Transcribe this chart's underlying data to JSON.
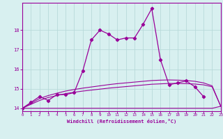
{
  "x": [
    0,
    1,
    2,
    3,
    4,
    5,
    6,
    7,
    8,
    9,
    10,
    11,
    12,
    13,
    14,
    15,
    16,
    17,
    18,
    19,
    20,
    21,
    22,
    23
  ],
  "line_main": [
    14.0,
    14.3,
    14.6,
    14.4,
    14.7,
    14.7,
    14.8,
    15.9,
    17.5,
    18.0,
    17.8,
    17.5,
    17.6,
    17.6,
    18.3,
    19.1,
    16.5,
    15.2,
    15.3,
    15.4,
    15.1,
    14.6,
    null,
    null
  ],
  "line_flat": [
    14.0,
    14.0,
    14.0,
    14.0,
    14.0,
    14.0,
    14.0,
    14.0,
    14.0,
    14.0,
    14.0,
    14.0,
    14.0,
    14.0,
    14.0,
    14.0,
    14.0,
    14.0,
    14.0,
    14.0,
    14.0,
    14.0,
    14.0,
    14.1
  ],
  "line_trend1": [
    14.0,
    14.2,
    14.4,
    14.55,
    14.65,
    14.75,
    14.82,
    14.88,
    14.93,
    14.98,
    15.03,
    15.07,
    15.11,
    15.15,
    15.19,
    15.23,
    15.25,
    15.27,
    15.27,
    15.26,
    15.24,
    15.2,
    15.1,
    14.1
  ],
  "line_trend2": [
    14.0,
    14.25,
    14.5,
    14.65,
    14.77,
    14.88,
    14.96,
    15.03,
    15.09,
    15.15,
    15.21,
    15.26,
    15.3,
    15.34,
    15.38,
    15.42,
    15.44,
    15.45,
    15.44,
    15.42,
    15.38,
    15.3,
    15.15,
    14.1
  ],
  "background_color": "#d8f0f0",
  "grid_color": "#b8dada",
  "line_color": "#990099",
  "xlabel": "Windchill (Refroidissement éolien,°C)",
  "xlim": [
    0,
    23
  ],
  "ylim": [
    13.85,
    19.4
  ],
  "yticks": [
    14,
    15,
    16,
    17,
    18
  ],
  "xticks": [
    0,
    1,
    2,
    3,
    4,
    5,
    6,
    7,
    8,
    9,
    10,
    11,
    12,
    13,
    14,
    15,
    16,
    17,
    18,
    19,
    20,
    21,
    22,
    23
  ]
}
